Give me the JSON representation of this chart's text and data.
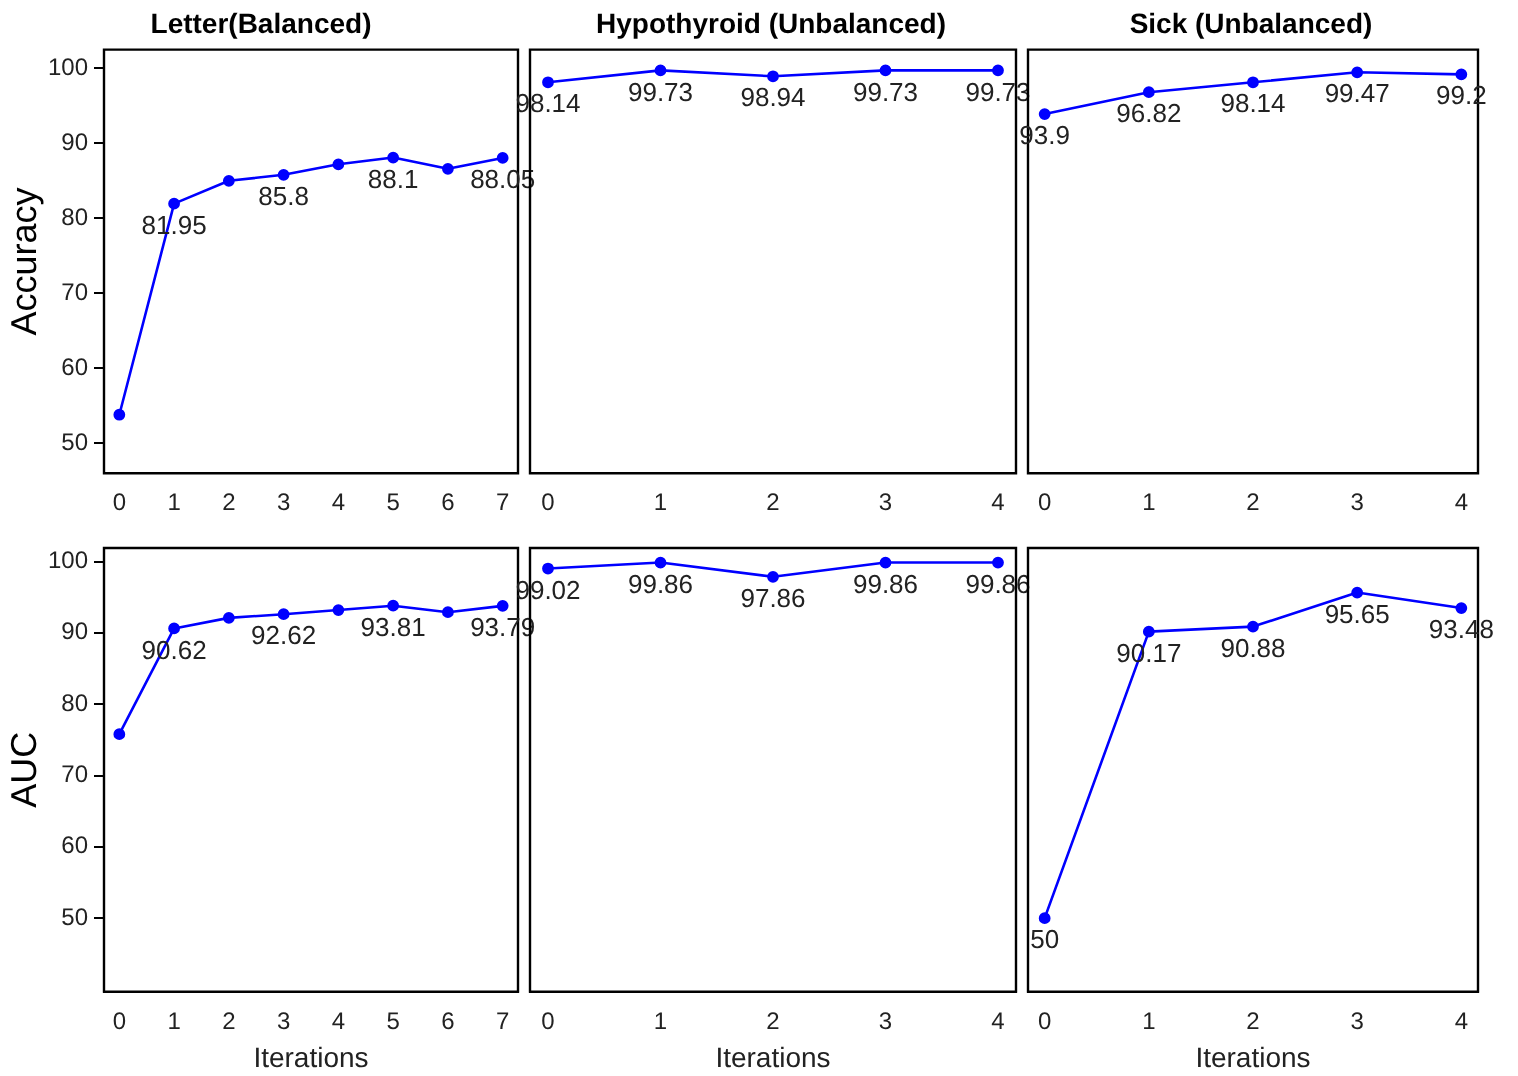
{
  "chart_data": [
    {
      "type": "line",
      "title": "Letter(Balanced)",
      "ylabel": "Accuracy",
      "x": [
        0,
        1,
        2,
        3,
        4,
        5,
        6,
        7
      ],
      "xlim": [
        -0.28,
        7.28
      ],
      "xticks": [
        0,
        1,
        2,
        3,
        4,
        5,
        6,
        7
      ],
      "ylim": [
        46,
        102.5
      ],
      "yticks": [
        50,
        60,
        70,
        80,
        90,
        100
      ],
      "marker": "circle",
      "series": [
        {
          "color": "#0000ff",
          "values": [
            53.8,
            81.95,
            85.0,
            85.8,
            87.2,
            88.1,
            86.6,
            88.05
          ],
          "value_labels": [
            null,
            "81.95",
            null,
            "85.8",
            null,
            "88.1",
            null,
            "88.05"
          ]
        }
      ]
    },
    {
      "type": "line",
      "title": "Hypothyroid (Unbalanced)",
      "x": [
        0,
        1,
        2,
        3,
        4
      ],
      "xlim": [
        -0.16,
        4.16
      ],
      "xticks": [
        0,
        1,
        2,
        3,
        4
      ],
      "ylim": [
        46,
        102.5
      ],
      "yticks": [
        50,
        60,
        70,
        80,
        90,
        100
      ],
      "tick_labels": "x",
      "marker": "circle",
      "series": [
        {
          "color": "#0000ff",
          "values": [
            98.14,
            99.73,
            98.94,
            99.73,
            99.73
          ],
          "value_labels": [
            "98.14",
            "99.73",
            "98.94",
            "99.73",
            "99.73"
          ]
        }
      ]
    },
    {
      "type": "line",
      "title": "Sick (Unbalanced)",
      "x": [
        0,
        1,
        2,
        3,
        4
      ],
      "xlim": [
        -0.16,
        4.16
      ],
      "xticks": [
        0,
        1,
        2,
        3,
        4
      ],
      "ylim": [
        46,
        102.5
      ],
      "yticks": [
        50,
        60,
        70,
        80,
        90,
        100
      ],
      "tick_labels": "x",
      "marker": "circle",
      "series": [
        {
          "color": "#0000ff",
          "values": [
            93.9,
            96.82,
            98.14,
            99.47,
            99.2
          ],
          "value_labels": [
            "93.9",
            "96.82",
            "98.14",
            "99.47",
            "99.2"
          ]
        }
      ]
    },
    {
      "type": "line",
      "ylabel": "AUC",
      "xlabel": "Iterations",
      "x": [
        0,
        1,
        2,
        3,
        4,
        5,
        6,
        7
      ],
      "xlim": [
        -0.28,
        7.28
      ],
      "xticks": [
        0,
        1,
        2,
        3,
        4,
        5,
        6,
        7
      ],
      "ylim": [
        39.7,
        101.9
      ],
      "yticks": [
        50,
        60,
        70,
        80,
        90,
        100
      ],
      "marker": "circle",
      "series": [
        {
          "color": "#0000ff",
          "values": [
            75.8,
            90.62,
            92.1,
            92.62,
            93.2,
            93.81,
            92.9,
            93.79
          ],
          "value_labels": [
            null,
            "90.62",
            null,
            "92.62",
            null,
            "93.81",
            null,
            "93.79"
          ]
        }
      ]
    },
    {
      "type": "line",
      "xlabel": "Iterations",
      "x": [
        0,
        1,
        2,
        3,
        4
      ],
      "xlim": [
        -0.16,
        4.16
      ],
      "xticks": [
        0,
        1,
        2,
        3,
        4
      ],
      "ylim": [
        39.7,
        101.9
      ],
      "yticks": [
        50,
        60,
        70,
        80,
        90,
        100
      ],
      "tick_labels": "x",
      "marker": "circle",
      "series": [
        {
          "color": "#0000ff",
          "values": [
            99.02,
            99.86,
            97.86,
            99.86,
            99.86
          ],
          "value_labels": [
            "99.02",
            "99.86",
            "97.86",
            "99.86",
            "99.86"
          ]
        }
      ]
    },
    {
      "type": "line",
      "xlabel": "Iterations",
      "x": [
        0,
        1,
        2,
        3,
        4
      ],
      "xlim": [
        -0.16,
        4.16
      ],
      "xticks": [
        0,
        1,
        2,
        3,
        4
      ],
      "ylim": [
        39.7,
        101.9
      ],
      "yticks": [
        50,
        60,
        70,
        80,
        90,
        100
      ],
      "tick_labels": "x",
      "marker": "circle",
      "series": [
        {
          "color": "#0000ff",
          "values": [
            50,
            90.17,
            90.88,
            95.65,
            93.48
          ],
          "value_labels": [
            "50",
            "90.17",
            "90.88",
            "95.65",
            "93.48"
          ]
        }
      ]
    }
  ]
}
